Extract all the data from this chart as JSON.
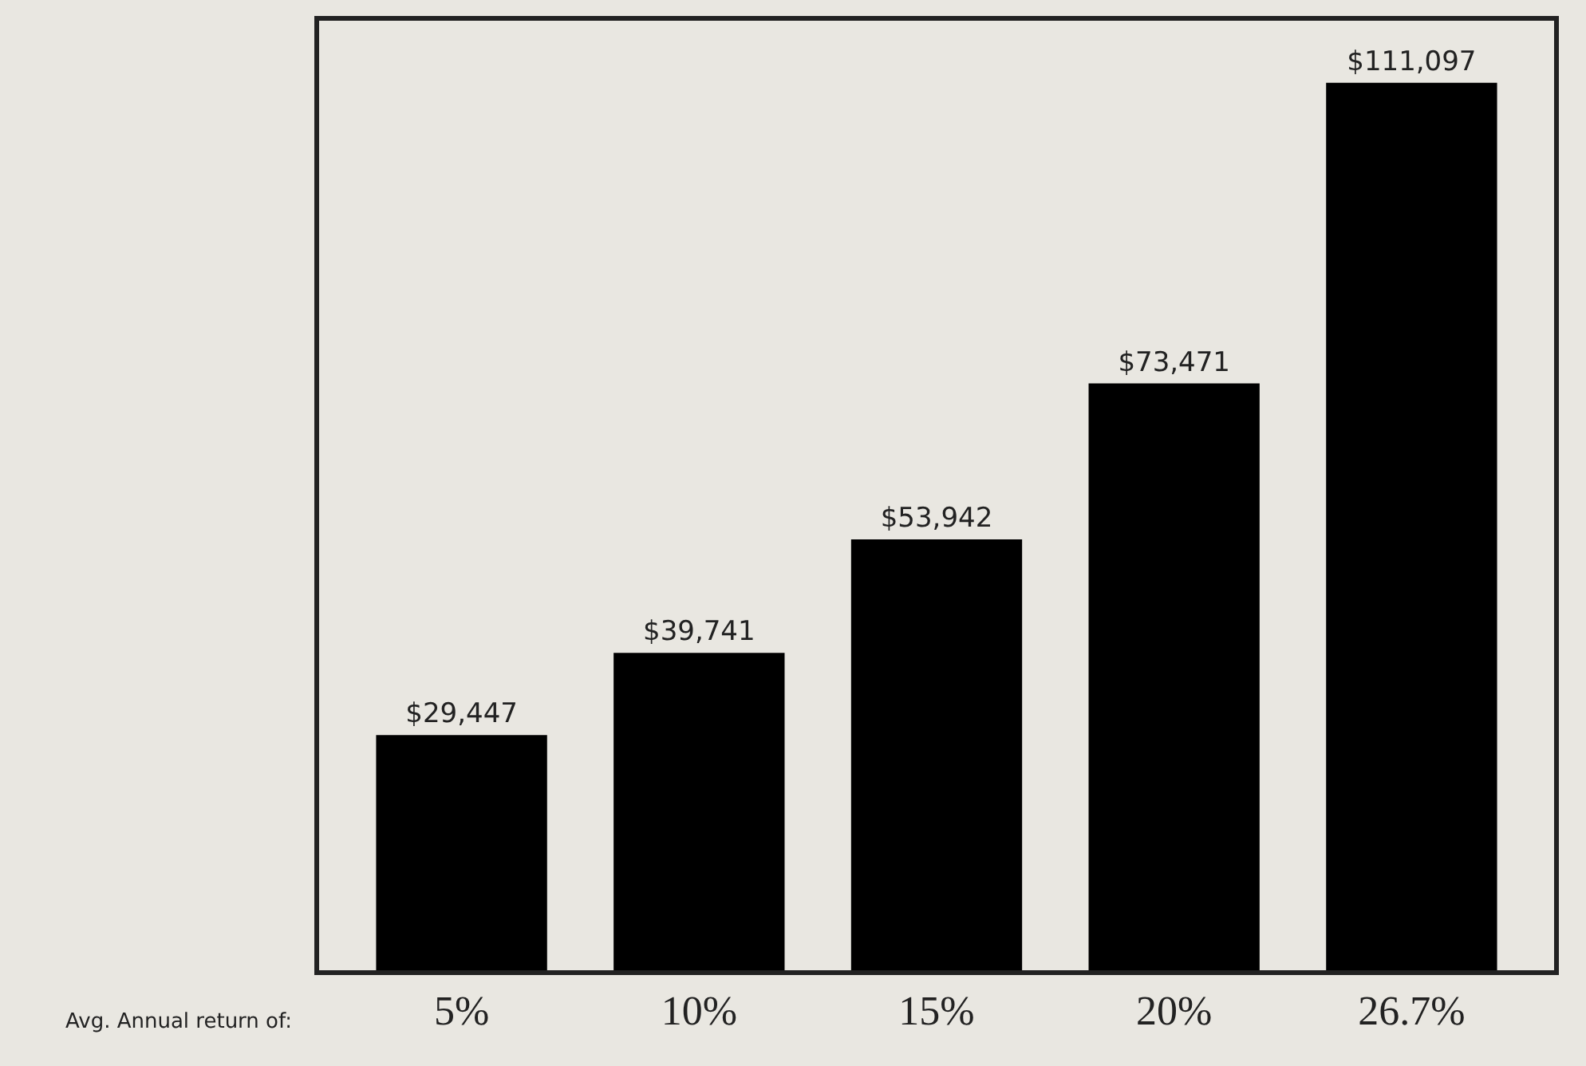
{
  "chart_data": {
    "type": "bar",
    "xlabel": "Avg. Annual return of:",
    "categories": [
      "5%",
      "10%",
      "15%",
      "20%",
      "26.7%"
    ],
    "values": [
      29447,
      39741,
      53942,
      73471,
      111097
    ],
    "color": "#000000",
    "value_labels": [
      "$29,447",
      "$39,741",
      "$53,942",
      "$73,471",
      "$111,097"
    ],
    "grid": false,
    "legend": false
  }
}
